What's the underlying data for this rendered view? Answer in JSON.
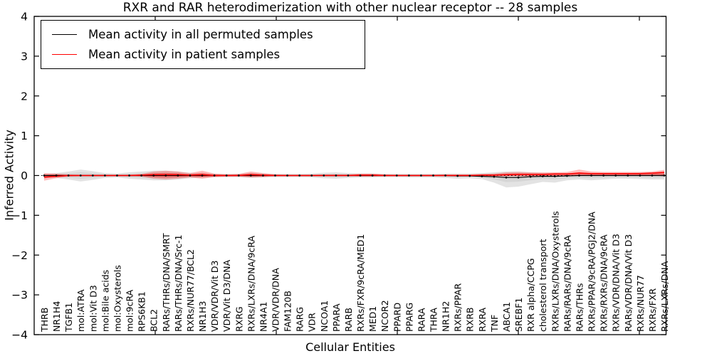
{
  "figure": {
    "title": "RXR and RAR heterodimerization with other nuclear receptor -- 28 samples",
    "xlabel": "Cellular Entities",
    "ylabel": "Inferred Activity",
    "legend": [
      {
        "label": "Mean activity in all permuted samples",
        "color": "#000000"
      },
      {
        "label": "Mean activity in patient samples",
        "color": "#ff0000"
      }
    ],
    "colors": {
      "permuted_line": "#000000",
      "patient_line": "#ff0000",
      "permuted_band": "#bdbdbd",
      "patient_band": "#ff0000",
      "zero_line": "#000000"
    }
  },
  "chart_data": {
    "type": "line",
    "title": "RXR and RAR heterodimerization with other nuclear receptor -- 28 samples",
    "xlabel": "Cellular Entities",
    "ylabel": "Inferred Activity",
    "ylim": [
      -4,
      4
    ],
    "grid": false,
    "legend_position": "upper left",
    "ytick_labels": [
      "4",
      "3",
      "2",
      "1",
      "0",
      "−1",
      "−2",
      "−3",
      "−4"
    ],
    "ytick_values": [
      4,
      3,
      2,
      1,
      0,
      -1,
      -2,
      -3,
      -4
    ],
    "categories": [
      "THRB",
      "NR1H4",
      "TGFB1",
      "mol:ATRA",
      "mol:Vit D3",
      "mol:Bile acids",
      "mol:Oxysterols",
      "mol:9cRA",
      "RPS6KB1",
      "BCL2",
      "RARs/THRs/DNA/SMRT",
      "RARs/THRs/DNA/Src-1",
      "RXRs/NUR77/BCL2",
      "NR1H3",
      "VDR/VDR/Vit D3",
      "VDR/Vit D3/DNA",
      "RXRG",
      "RXRs/LXRs/DNA/9cRA",
      "NR4A1",
      "VDR/VDR/DNA",
      "FAM120B",
      "RARG",
      "VDR",
      "NCOA1",
      "PPARA",
      "RARB",
      "RXRs/FXR/9cRA/MED1",
      "MED1",
      "NCOR2",
      "PPARD",
      "PPARG",
      "RARA",
      "THRA",
      "NR1H2",
      "RXRs/PPAR",
      "RXRB",
      "RXRA",
      "TNF",
      "ABCA1",
      "SREBF1",
      "RXR alpha/CCPG",
      "cholesterol transport",
      "RXRs/LXRs/DNA/Oxysterols",
      "RARs/RARs/DNA/9cRA",
      "RARs/THRs",
      "RXRs/PPAR/9cRA/PGJ2/DNA",
      "RXRs/RXRs/DNA/9cRA",
      "RXRs/VDR/DNA/Vit D3",
      "RARs/VDR/DNA/Vit D3",
      "RXRs/NUR77",
      "RXRs/FXR",
      "RXRs/LXRs/DNA"
    ],
    "series": [
      {
        "name": "Mean activity in all permuted samples",
        "color": "#000000",
        "values": [
          0,
          0,
          0,
          0,
          0,
          0,
          0,
          0,
          0,
          0,
          0,
          0,
          0,
          0,
          0,
          0,
          0,
          0,
          0,
          0,
          0,
          0,
          0,
          0,
          0,
          0,
          0,
          0,
          0,
          0,
          0,
          0,
          0,
          0,
          -0.01,
          -0.01,
          -0.02,
          -0.03,
          -0.05,
          -0.05,
          -0.03,
          -0.02,
          -0.02,
          -0.01,
          0,
          0,
          0,
          0,
          0,
          0,
          0,
          0
        ]
      },
      {
        "name": "Mean activity in patient samples",
        "color": "#ff0000",
        "values": [
          -0.04,
          -0.02,
          0,
          0,
          0,
          0,
          0,
          0,
          0.01,
          0.02,
          0.02,
          0.02,
          0.01,
          0.02,
          0,
          0,
          0,
          0.02,
          0.01,
          0,
          0,
          0,
          0,
          0,
          0,
          0,
          0.01,
          0.01,
          0,
          0,
          0,
          0,
          0,
          0,
          0,
          0,
          0.01,
          0.01,
          0.02,
          0.03,
          0.03,
          0.03,
          0.04,
          0.04,
          0.06,
          0.05,
          0.05,
          0.05,
          0.05,
          0.05,
          0.06,
          0.08
        ]
      }
    ],
    "bands": [
      {
        "name": "permuted samples range",
        "color": "#bdbdbd",
        "upper": [
          0.03,
          0.06,
          0.1,
          0.15,
          0.11,
          0.06,
          0.05,
          0.08,
          0.1,
          0.12,
          0.12,
          0.1,
          0.07,
          0.05,
          0.04,
          0.04,
          0.04,
          0.06,
          0.05,
          0.04,
          0.04,
          0.04,
          0.05,
          0.07,
          0.08,
          0.06,
          0.05,
          0.05,
          0.04,
          0.04,
          0.04,
          0.04,
          0.04,
          0.05,
          0.05,
          0.05,
          0.06,
          0.08,
          0.1,
          0.1,
          0.08,
          0.06,
          0.06,
          0.06,
          0.06,
          0.06,
          0.06,
          0.06,
          0.06,
          0.07,
          0.08,
          0.09
        ],
        "lower": [
          -0.03,
          -0.06,
          -0.1,
          -0.15,
          -0.11,
          -0.06,
          -0.05,
          -0.08,
          -0.1,
          -0.12,
          -0.12,
          -0.1,
          -0.07,
          -0.05,
          -0.04,
          -0.04,
          -0.04,
          -0.06,
          -0.05,
          -0.04,
          -0.04,
          -0.04,
          -0.05,
          -0.07,
          -0.08,
          -0.06,
          -0.05,
          -0.05,
          -0.04,
          -0.04,
          -0.05,
          -0.05,
          -0.05,
          -0.06,
          -0.08,
          -0.07,
          -0.09,
          -0.18,
          -0.3,
          -0.28,
          -0.22,
          -0.16,
          -0.18,
          -0.12,
          -0.1,
          -0.12,
          -0.1,
          -0.08,
          -0.08,
          -0.09,
          -0.1,
          -0.1
        ]
      },
      {
        "name": "patient samples range",
        "color": "#ff0000",
        "upper": [
          0.06,
          0.05,
          0.03,
          0.02,
          0.02,
          0.02,
          0.02,
          0.02,
          0.04,
          0.1,
          0.12,
          0.1,
          0.06,
          0.12,
          0.05,
          0.03,
          0.04,
          0.1,
          0.06,
          0.03,
          0.02,
          0.02,
          0.02,
          0.03,
          0.03,
          0.03,
          0.05,
          0.05,
          0.03,
          0.02,
          0.02,
          0.02,
          0.02,
          0.03,
          0.03,
          0.03,
          0.04,
          0.05,
          0.08,
          0.09,
          0.08,
          0.08,
          0.08,
          0.09,
          0.15,
          0.1,
          0.09,
          0.09,
          0.09,
          0.09,
          0.1,
          0.14
        ],
        "lower": [
          -0.13,
          -0.07,
          -0.03,
          -0.02,
          -0.02,
          -0.02,
          -0.02,
          -0.02,
          -0.03,
          -0.08,
          -0.1,
          -0.08,
          -0.05,
          -0.08,
          -0.04,
          -0.03,
          -0.03,
          -0.05,
          -0.04,
          -0.02,
          -0.02,
          -0.02,
          -0.02,
          -0.02,
          -0.02,
          -0.02,
          -0.03,
          -0.03,
          -0.02,
          -0.02,
          -0.02,
          -0.02,
          -0.02,
          -0.02,
          -0.02,
          -0.02,
          -0.02,
          -0.02,
          -0.02,
          -0.02,
          -0.02,
          -0.02,
          -0.02,
          -0.02,
          0.0,
          0.0,
          0.0,
          0.0,
          0.0,
          0.0,
          0.0,
          -0.02
        ]
      }
    ]
  }
}
